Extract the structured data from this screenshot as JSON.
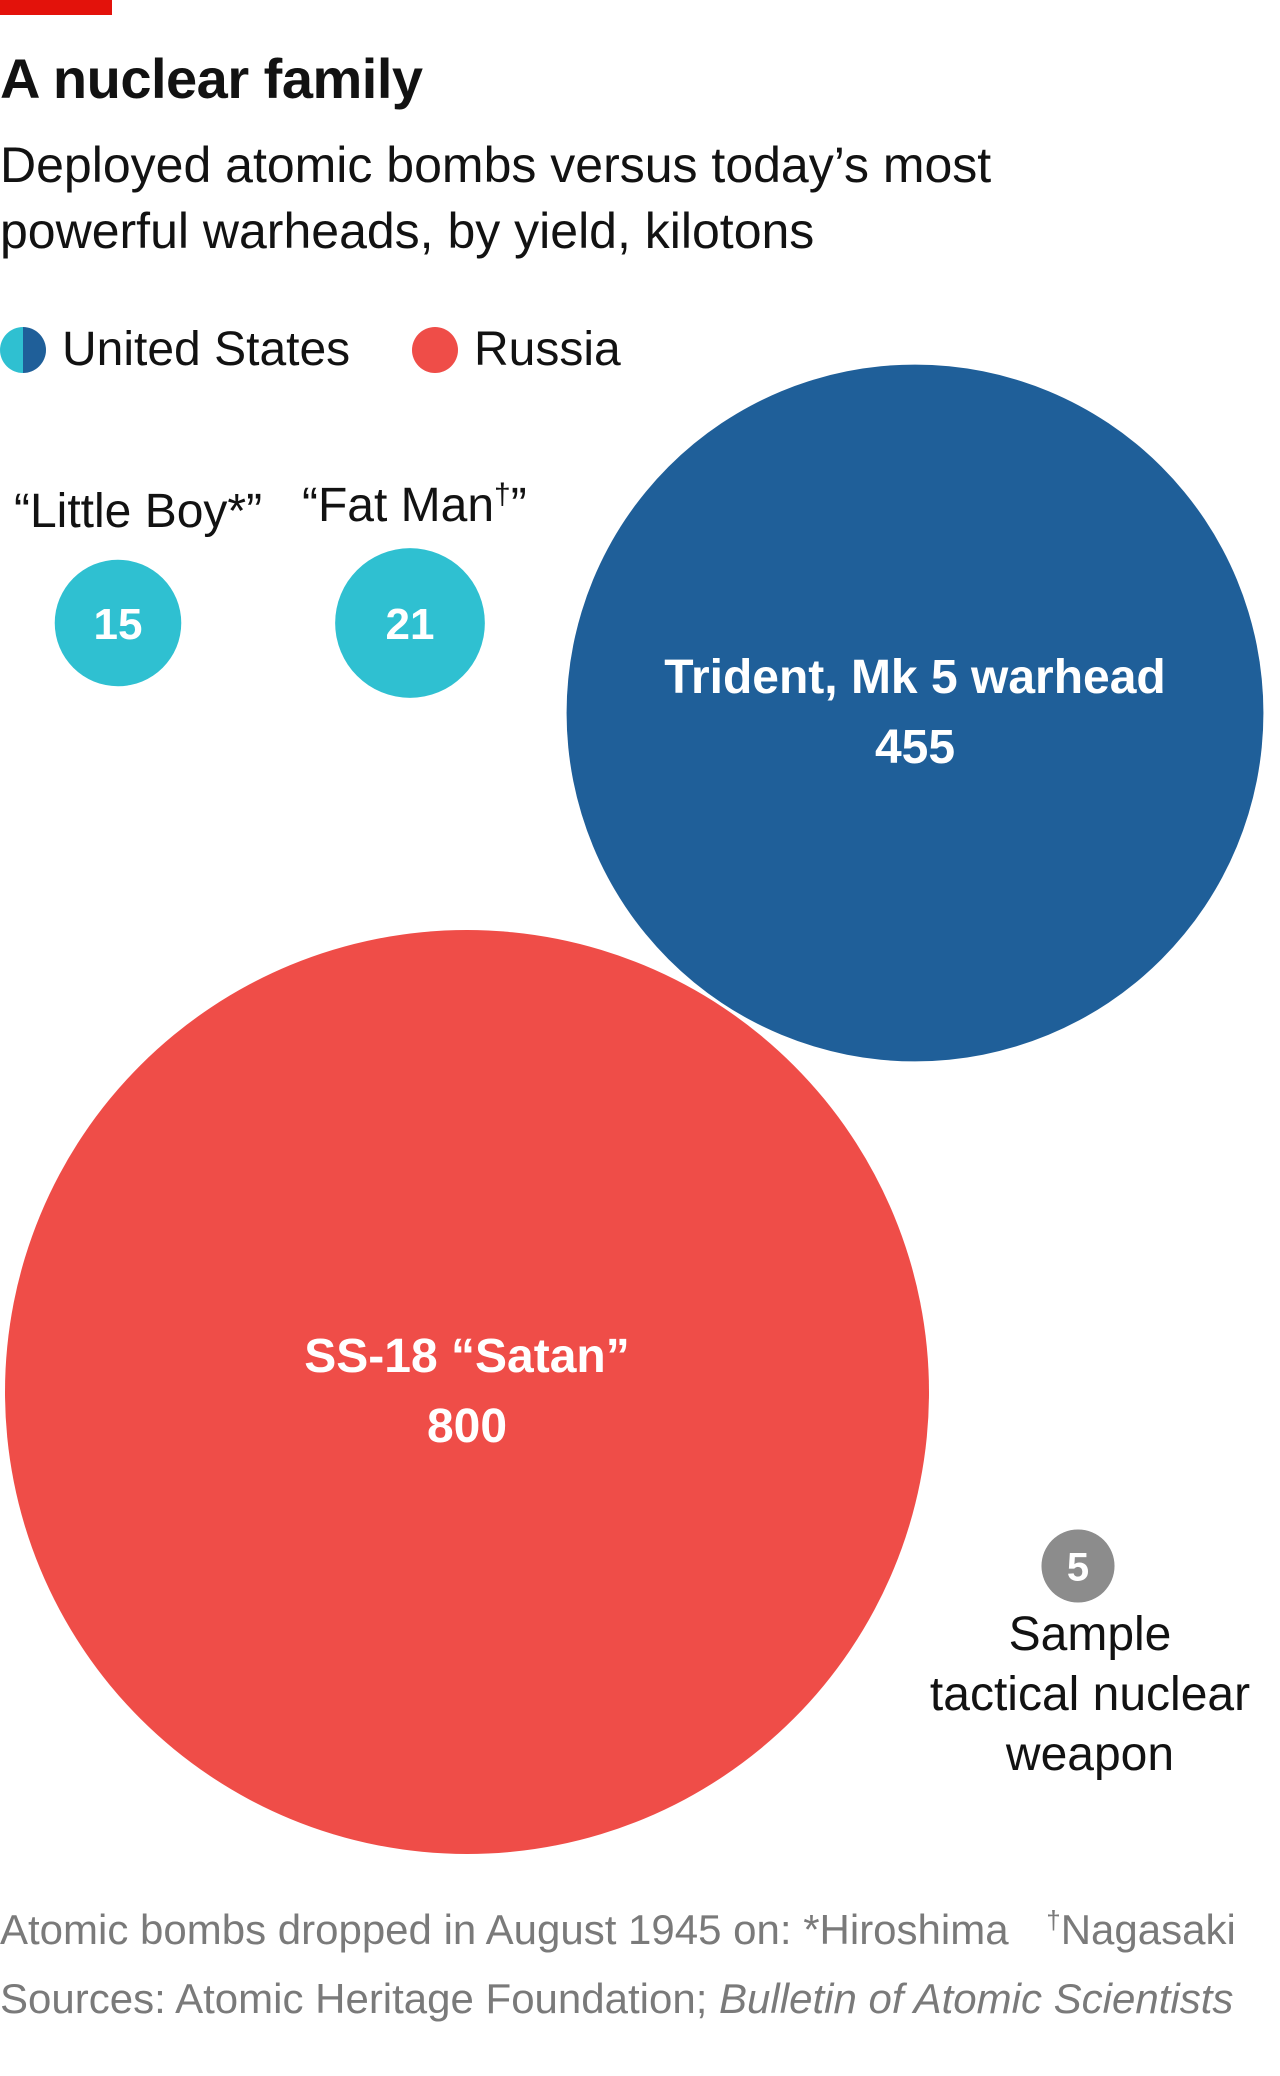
{
  "header": {
    "title": "A nuclear family",
    "subtitle": "Deployed atomic bombs versus today’s most powerful warheads, by yield, kilotons"
  },
  "legend": {
    "us_label": "United States",
    "russia_label": "Russia"
  },
  "colors": {
    "accent": "#e3120b",
    "atomic_bomb": "#2fc0d1",
    "us_modern": "#1f5f99",
    "russia": "#ef4d48",
    "sample": "#8c8c8c"
  },
  "chart_data": {
    "type": "bubble",
    "unit": "kilotons",
    "items": [
      {
        "name": "“Little Boy*”",
        "value": 15,
        "country": "United States",
        "color": "#2fc0d1"
      },
      {
        "name": "“Fat Man†”",
        "value": 21,
        "country": "United States",
        "color": "#2fc0d1"
      },
      {
        "name": "Trident, Mk 5 warhead",
        "value": 455,
        "country": "United States",
        "color": "#1f5f99"
      },
      {
        "name": "SS-18 “Satan”",
        "value": 800,
        "country": "Russia",
        "color": "#ef4d48"
      },
      {
        "name": "Sample tactical nuclear weapon",
        "value": 5,
        "country": "",
        "color": "#8c8c8c"
      }
    ]
  },
  "labels": {
    "little_boy": "“Little Boy*”",
    "fat_man": "“Fat Man",
    "fat_man_dagger": "†",
    "fat_man_close": "”",
    "trident": "Trident, Mk 5 warhead",
    "satan": "SS-18 “Satan”",
    "sample_line1": "Sample",
    "sample_line2": "tactical nuclear",
    "sample_line3": "weapon"
  },
  "footnotes": {
    "atomic": "Atomic bombs dropped in August 1945 on: *Hiroshima",
    "dagger": "†",
    "nagasaki": "Nagasaki",
    "sources_prefix": "Sources: Atomic Heritage Foundation; ",
    "sources_italic": "Bulletin of Atomic Scientists"
  }
}
